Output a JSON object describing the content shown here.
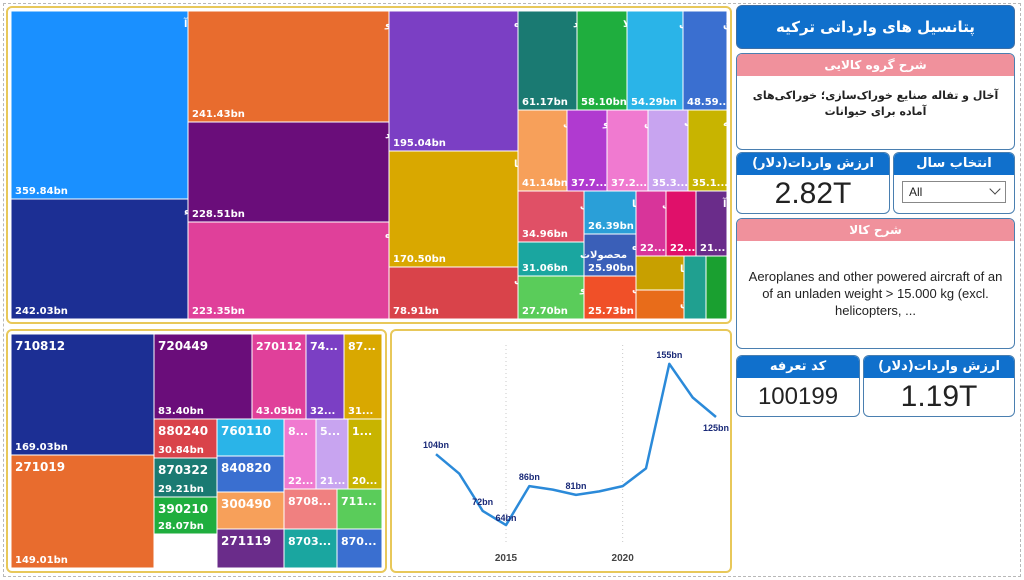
{
  "title": "پتانسیل های وارداتی ترکیه",
  "group_desc": {
    "header": "شرح گروه کالایی",
    "text": "آخال و تفاله صنایع خوراک‌سازی؛ خوراکی‌های آماده برای حیوانات"
  },
  "import_value": {
    "header": "ارزش واردات(دلار)",
    "value": "2.82T"
  },
  "year_filter": {
    "header": "انتخاب سال",
    "selected": "All"
  },
  "product_desc": {
    "header": "شرح کالا",
    "text": "Aeroplanes and other powered aircraft of an of an unladen weight > 15.000 kg (excl. helicopters, ..."
  },
  "tariff_code": {
    "header": "کد تعرفه",
    "value": "100199"
  },
  "import_value2": {
    "header": "ارزش واردات(دلار)",
    "value": "1.19T"
  },
  "colors": {
    "blue": "#1070cc",
    "pink": "#f0919c",
    "line": "#2b8ad9"
  },
  "treemap_groups": [
    {
      "label": "راکتورهای هسته‌ای، دیگ‌های بخار و آ",
      "value": "359.84bn",
      "color": "#1a90ff"
    },
    {
      "label": "ماشین‌آلات و دستگاه‌های برقی و اجزاء",
      "value": "242.03bn",
      "color": "#1c2f94"
    },
    {
      "label": "سوخت‌های معدنی، روغن‌های معدنی و محصو",
      "value": "241.43bn",
      "color": "#e86c2e"
    },
    {
      "label": "چدن، آهن و فولاد",
      "value": "228.51bn",
      "color": "#6a0d7a"
    },
    {
      "label": "وسایل نقلیه زمینی غیر از نوافل روی خط راه‌آه",
      "value": "223.35bn",
      "color": "#e0409a"
    },
    {
      "label": "مروارید طبیعی یا پرورده",
      "value": "195.04bn",
      "color": "#7b3fc4"
    },
    {
      "label": "مواد پلاستیکی و اشیای سا",
      "value": "170.50bn",
      "color": "#d9a800"
    },
    {
      "label": "مواد شیمیایی آلی",
      "value": "78.91bn",
      "color": "#d9434a"
    },
    {
      "label": "آلات و د",
      "value": "61.17bn",
      "color": "#1a7a72"
    },
    {
      "label": "محصولا",
      "value": "58.10bn",
      "color": "#1fae3e"
    },
    {
      "label": "آلومینی",
      "value": "54.29bn",
      "color": "#2ab4e8"
    },
    {
      "label": "ممن",
      "value": "48.59...",
      "color": "#3a6fd0"
    },
    {
      "label": "وسایل",
      "value": "41.14bn",
      "color": "#f7a05a"
    },
    {
      "label": "کائو",
      "value": "37.7...",
      "color": "#b03ad0"
    },
    {
      "label": "مس",
      "value": "37.2...",
      "color": "#f07ad0"
    },
    {
      "label": "غلات",
      "value": "35.3...",
      "color": "#c8a4f0"
    },
    {
      "label": "پنبه",
      "value": "35.1...",
      "color": "#c8b400"
    },
    {
      "label": "کاغذ و مق",
      "value": "34.96bn",
      "color": "#e05066"
    },
    {
      "label": "رشته‌ها",
      "value": "26.39bn",
      "color": "#2a9fd8"
    },
    {
      "label": "عصاره",
      "value": "25.90bn",
      "color": "#3a5fb8"
    },
    {
      "label": "محصولات",
      "value": "31.06bn",
      "color": "#1aa6a0"
    },
    {
      "label": "دانه و میو",
      "value": "27.70bn",
      "color": "#5acc5a"
    },
    {
      "label": "چربی",
      "value": "25.73bn",
      "color": "#f05028"
    },
    {
      "label": "ال",
      "value": "22...",
      "color": "#d8349a"
    },
    {
      "label": "",
      "value": "22...",
      "color": "#e0106a"
    },
    {
      "label": "آ",
      "value": "21...",
      "color": "#6a2c8a"
    },
    {
      "label": "کودها",
      "value": "",
      "color": "#c8a000"
    },
    {
      "label": "روغن",
      "value": "",
      "color": "#e86c1a"
    },
    {
      "label": "",
      "value": "",
      "color": "#20a090"
    },
    {
      "label": "",
      "value": "",
      "color": "#1aa030"
    },
    {
      "label": "",
      "value": "",
      "color": "#208040"
    }
  ],
  "treemap_codes": [
    {
      "code": "710812",
      "value": "169.03bn",
      "color": "#1c2f94"
    },
    {
      "code": "271019",
      "value": "149.01bn",
      "color": "#e86c2e"
    },
    {
      "code": "720449",
      "value": "83.40bn",
      "color": "#6a0d7a"
    },
    {
      "code": "270112",
      "value": "43.05bn",
      "color": "#e0409a"
    },
    {
      "code": "74...",
      "value": "32...",
      "color": "#7b3fc4"
    },
    {
      "code": "87...",
      "value": "31...",
      "color": "#d9a800"
    },
    {
      "code": "880240",
      "value": "30.84bn",
      "color": "#d9434a"
    },
    {
      "code": "760110",
      "value": "",
      "color": "#2ab4e8"
    },
    {
      "code": "8...",
      "value": "22...",
      "color": "#f07ad0"
    },
    {
      "code": "5...",
      "value": "21...",
      "color": "#c8a4f0"
    },
    {
      "code": "1...",
      "value": "20...",
      "color": "#c8b400"
    },
    {
      "code": "870322",
      "value": "29.21bn",
      "color": "#1a7a72"
    },
    {
      "code": "840820",
      "value": "",
      "color": "#3a6fd0"
    },
    {
      "code": "390210",
      "value": "28.07bn",
      "color": "#1fae3e"
    },
    {
      "code": "300490",
      "value": "",
      "color": "#f7a05a"
    },
    {
      "code": "8708...",
      "value": "",
      "color": "#f08080"
    },
    {
      "code": "711...",
      "value": "",
      "color": "#5acc5a"
    },
    {
      "code": "271119",
      "value": "",
      "color": "#6a2c8a"
    },
    {
      "code": "8703...",
      "value": "",
      "color": "#1aa6a0"
    },
    {
      "code": "870...",
      "value": "",
      "color": "#3a6fd0"
    }
  ],
  "chart_data": {
    "type": "line",
    "x": [
      2012,
      2013,
      2014,
      2015,
      2016,
      2017,
      2018,
      2019,
      2020,
      2021,
      2022,
      2023,
      2024
    ],
    "values": [
      104,
      93,
      72,
      64,
      86,
      84,
      81,
      83,
      86,
      96,
      155,
      136,
      125
    ],
    "labels": [
      "104bn",
      "",
      "72bn",
      "64bn",
      "86bn",
      "",
      "81bn",
      "",
      "",
      "",
      "155bn",
      "",
      "125bn"
    ],
    "x_ticks": [
      "2015",
      "2020"
    ],
    "color": "#2b8ad9",
    "ylim": [
      55,
      160
    ],
    "grid": "vertical dotted"
  }
}
